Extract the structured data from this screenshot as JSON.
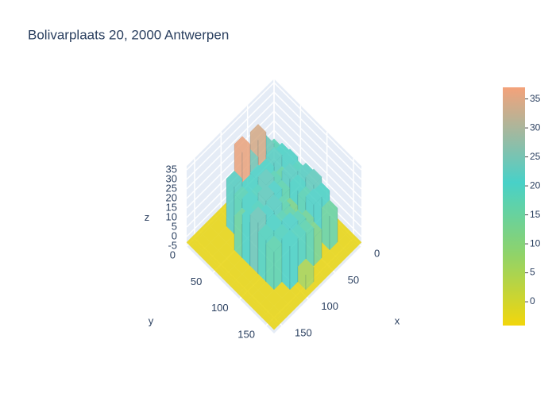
{
  "chart_data": {
    "type": "surface",
    "title": "Bolivarplaats 20, 2000 Antwerpen",
    "xlabel": "x",
    "ylabel": "y",
    "zlabel": "z",
    "x": [
      0,
      15,
      30,
      45,
      60,
      75,
      90,
      105,
      120,
      135,
      150,
      165
    ],
    "y": [
      0,
      15,
      30,
      45,
      60,
      75,
      90,
      105,
      120,
      135,
      150,
      165
    ],
    "z": [
      [
        -3,
        -3,
        -3,
        -3,
        -3,
        -3,
        -3,
        -3,
        -3,
        -3,
        -3,
        -3
      ],
      [
        -3,
        -3,
        -3,
        -3,
        -3,
        -3,
        -3,
        -3,
        -3,
        -3,
        -3,
        -3
      ],
      [
        -3,
        -3,
        18,
        24,
        34,
        25,
        36,
        22,
        -3,
        -3,
        -3,
        -3
      ],
      [
        -3,
        -3,
        20,
        22,
        20,
        21,
        20,
        18,
        -3,
        -3,
        -3,
        -3
      ],
      [
        -3,
        -3,
        21,
        16,
        18,
        23,
        19,
        20,
        15,
        -3,
        -3,
        -3
      ],
      [
        -3,
        8,
        19,
        22,
        17,
        21,
        23,
        19,
        20,
        -3,
        -3,
        -3
      ],
      [
        -3,
        -3,
        22,
        20,
        12,
        17,
        22,
        21,
        24,
        -3,
        -3,
        -3
      ],
      [
        -3,
        6,
        23,
        18,
        10,
        16,
        18,
        20,
        19,
        -3,
        -3,
        -3
      ],
      [
        -3,
        -3,
        20,
        21,
        14,
        18,
        21,
        19,
        17,
        -3,
        -3,
        -3
      ],
      [
        -3,
        -3,
        15,
        -3,
        12,
        17,
        19,
        20,
        -3,
        -3,
        -3,
        -3
      ],
      [
        -3,
        -3,
        -3,
        -3,
        -3,
        -3,
        5,
        -3,
        -3,
        -3,
        -3,
        -3
      ],
      [
        -3,
        -3,
        -3,
        -3,
        -3,
        -3,
        -3,
        -3,
        -3,
        -3,
        -3,
        -3
      ]
    ],
    "xlim": [
      0,
      165
    ],
    "ylim": [
      0,
      165
    ],
    "zlim": [
      -5,
      37
    ],
    "xticks": [
      0,
      50,
      100,
      150
    ],
    "yticks": [
      0,
      50,
      100,
      150
    ],
    "zticks": [
      -5,
      0,
      5,
      10,
      15,
      20,
      25,
      30,
      35
    ],
    "colorscale": [
      [
        0,
        "#f2d60c"
      ],
      [
        0.3,
        "#8fd36a"
      ],
      [
        0.6,
        "#48d1c8"
      ],
      [
        1,
        "#f4a27a"
      ]
    ],
    "colorbar": {
      "clim": [
        -4.1,
        37
      ],
      "ticks": [
        0,
        5,
        10,
        15,
        20,
        25,
        30,
        35
      ]
    }
  }
}
